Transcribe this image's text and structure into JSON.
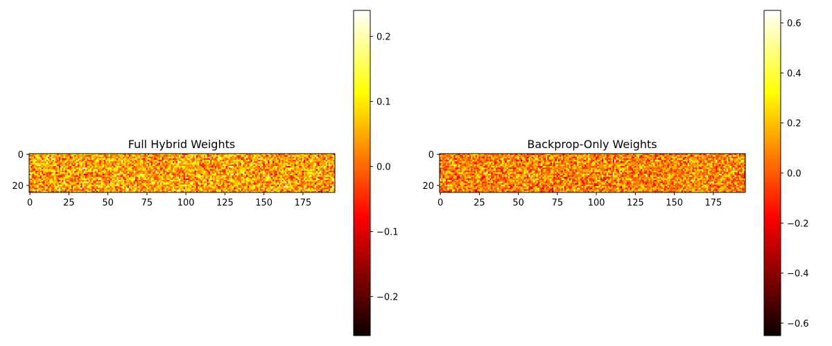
{
  "chart_data": [
    {
      "type": "heatmap",
      "title": "Full Hybrid Weights",
      "rows": 25,
      "cols": 196,
      "colormap": "hot",
      "x_ticks": [
        0,
        25,
        50,
        75,
        100,
        125,
        150,
        175
      ],
      "y_ticks": [
        0,
        20
      ],
      "value_range": [
        -0.26,
        0.24
      ],
      "colorbar_ticks": [
        0.2,
        0.1,
        0.0,
        -0.1,
        -0.2
      ],
      "colorbar_tick_labels": [
        "0.2",
        "0.1",
        "0.0",
        "−0.1",
        "−0.2"
      ],
      "values_summary": "random weights, mostly between -0.1 and 0.2"
    },
    {
      "type": "heatmap",
      "title": "Backprop-Only Weights",
      "rows": 25,
      "cols": 196,
      "colormap": "hot",
      "x_ticks": [
        0,
        25,
        50,
        75,
        100,
        125,
        150,
        175
      ],
      "y_ticks": [
        0,
        20
      ],
      "value_range": [
        -0.65,
        0.65
      ],
      "colorbar_ticks": [
        0.6,
        0.4,
        0.2,
        0.0,
        -0.2,
        -0.4,
        -0.6
      ],
      "colorbar_tick_labels": [
        "0.6",
        "0.4",
        "0.2",
        "0.0",
        "−0.2",
        "−0.4",
        "−0.6"
      ],
      "values_summary": "random weights, mostly between -0.3 and 0.5"
    }
  ]
}
